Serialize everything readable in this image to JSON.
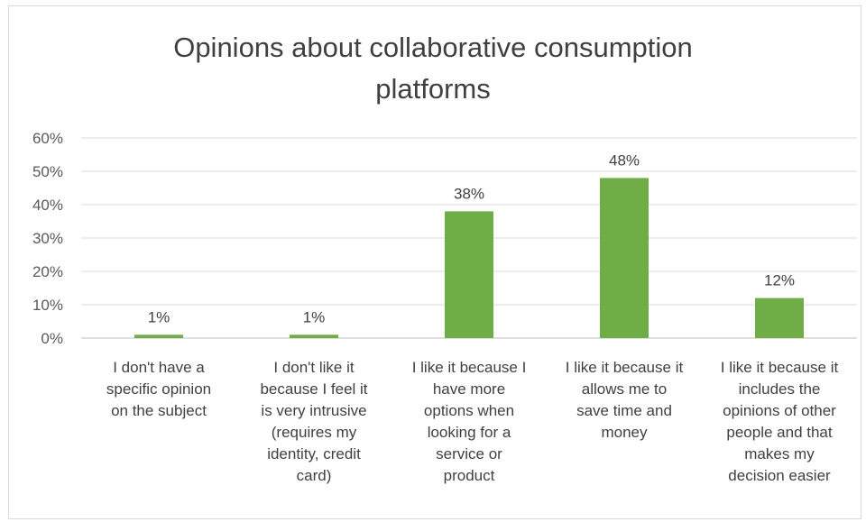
{
  "chart_data": {
    "type": "bar",
    "title_lines": [
      "Opinions about collaborative consumption",
      "platforms"
    ],
    "categories": [
      [
        "I don't have a",
        "specific opinion",
        "on the subject"
      ],
      [
        "I don't like it",
        "because I feel it",
        "is very intrusive",
        "(requires my",
        "identity, credit",
        "card)"
      ],
      [
        "I like it because I",
        "have more",
        "options when",
        "looking for a",
        "service or",
        "product"
      ],
      [
        "I like it because it",
        "allows me to",
        "save time and",
        "money"
      ],
      [
        "I like it because it",
        "includes the",
        "opinions of other",
        "people and that",
        "makes my",
        "decision easier"
      ]
    ],
    "values": [
      1,
      1,
      38,
      48,
      12
    ],
    "data_labels": [
      "1%",
      "1%",
      "38%",
      "48%",
      "12%"
    ],
    "y_ticks": [
      "0%",
      "10%",
      "20%",
      "30%",
      "40%",
      "50%",
      "60%"
    ],
    "ylim": [
      0,
      60
    ],
    "grid": true,
    "bar_color": "#70ad47",
    "xlabel": "",
    "ylabel": ""
  }
}
